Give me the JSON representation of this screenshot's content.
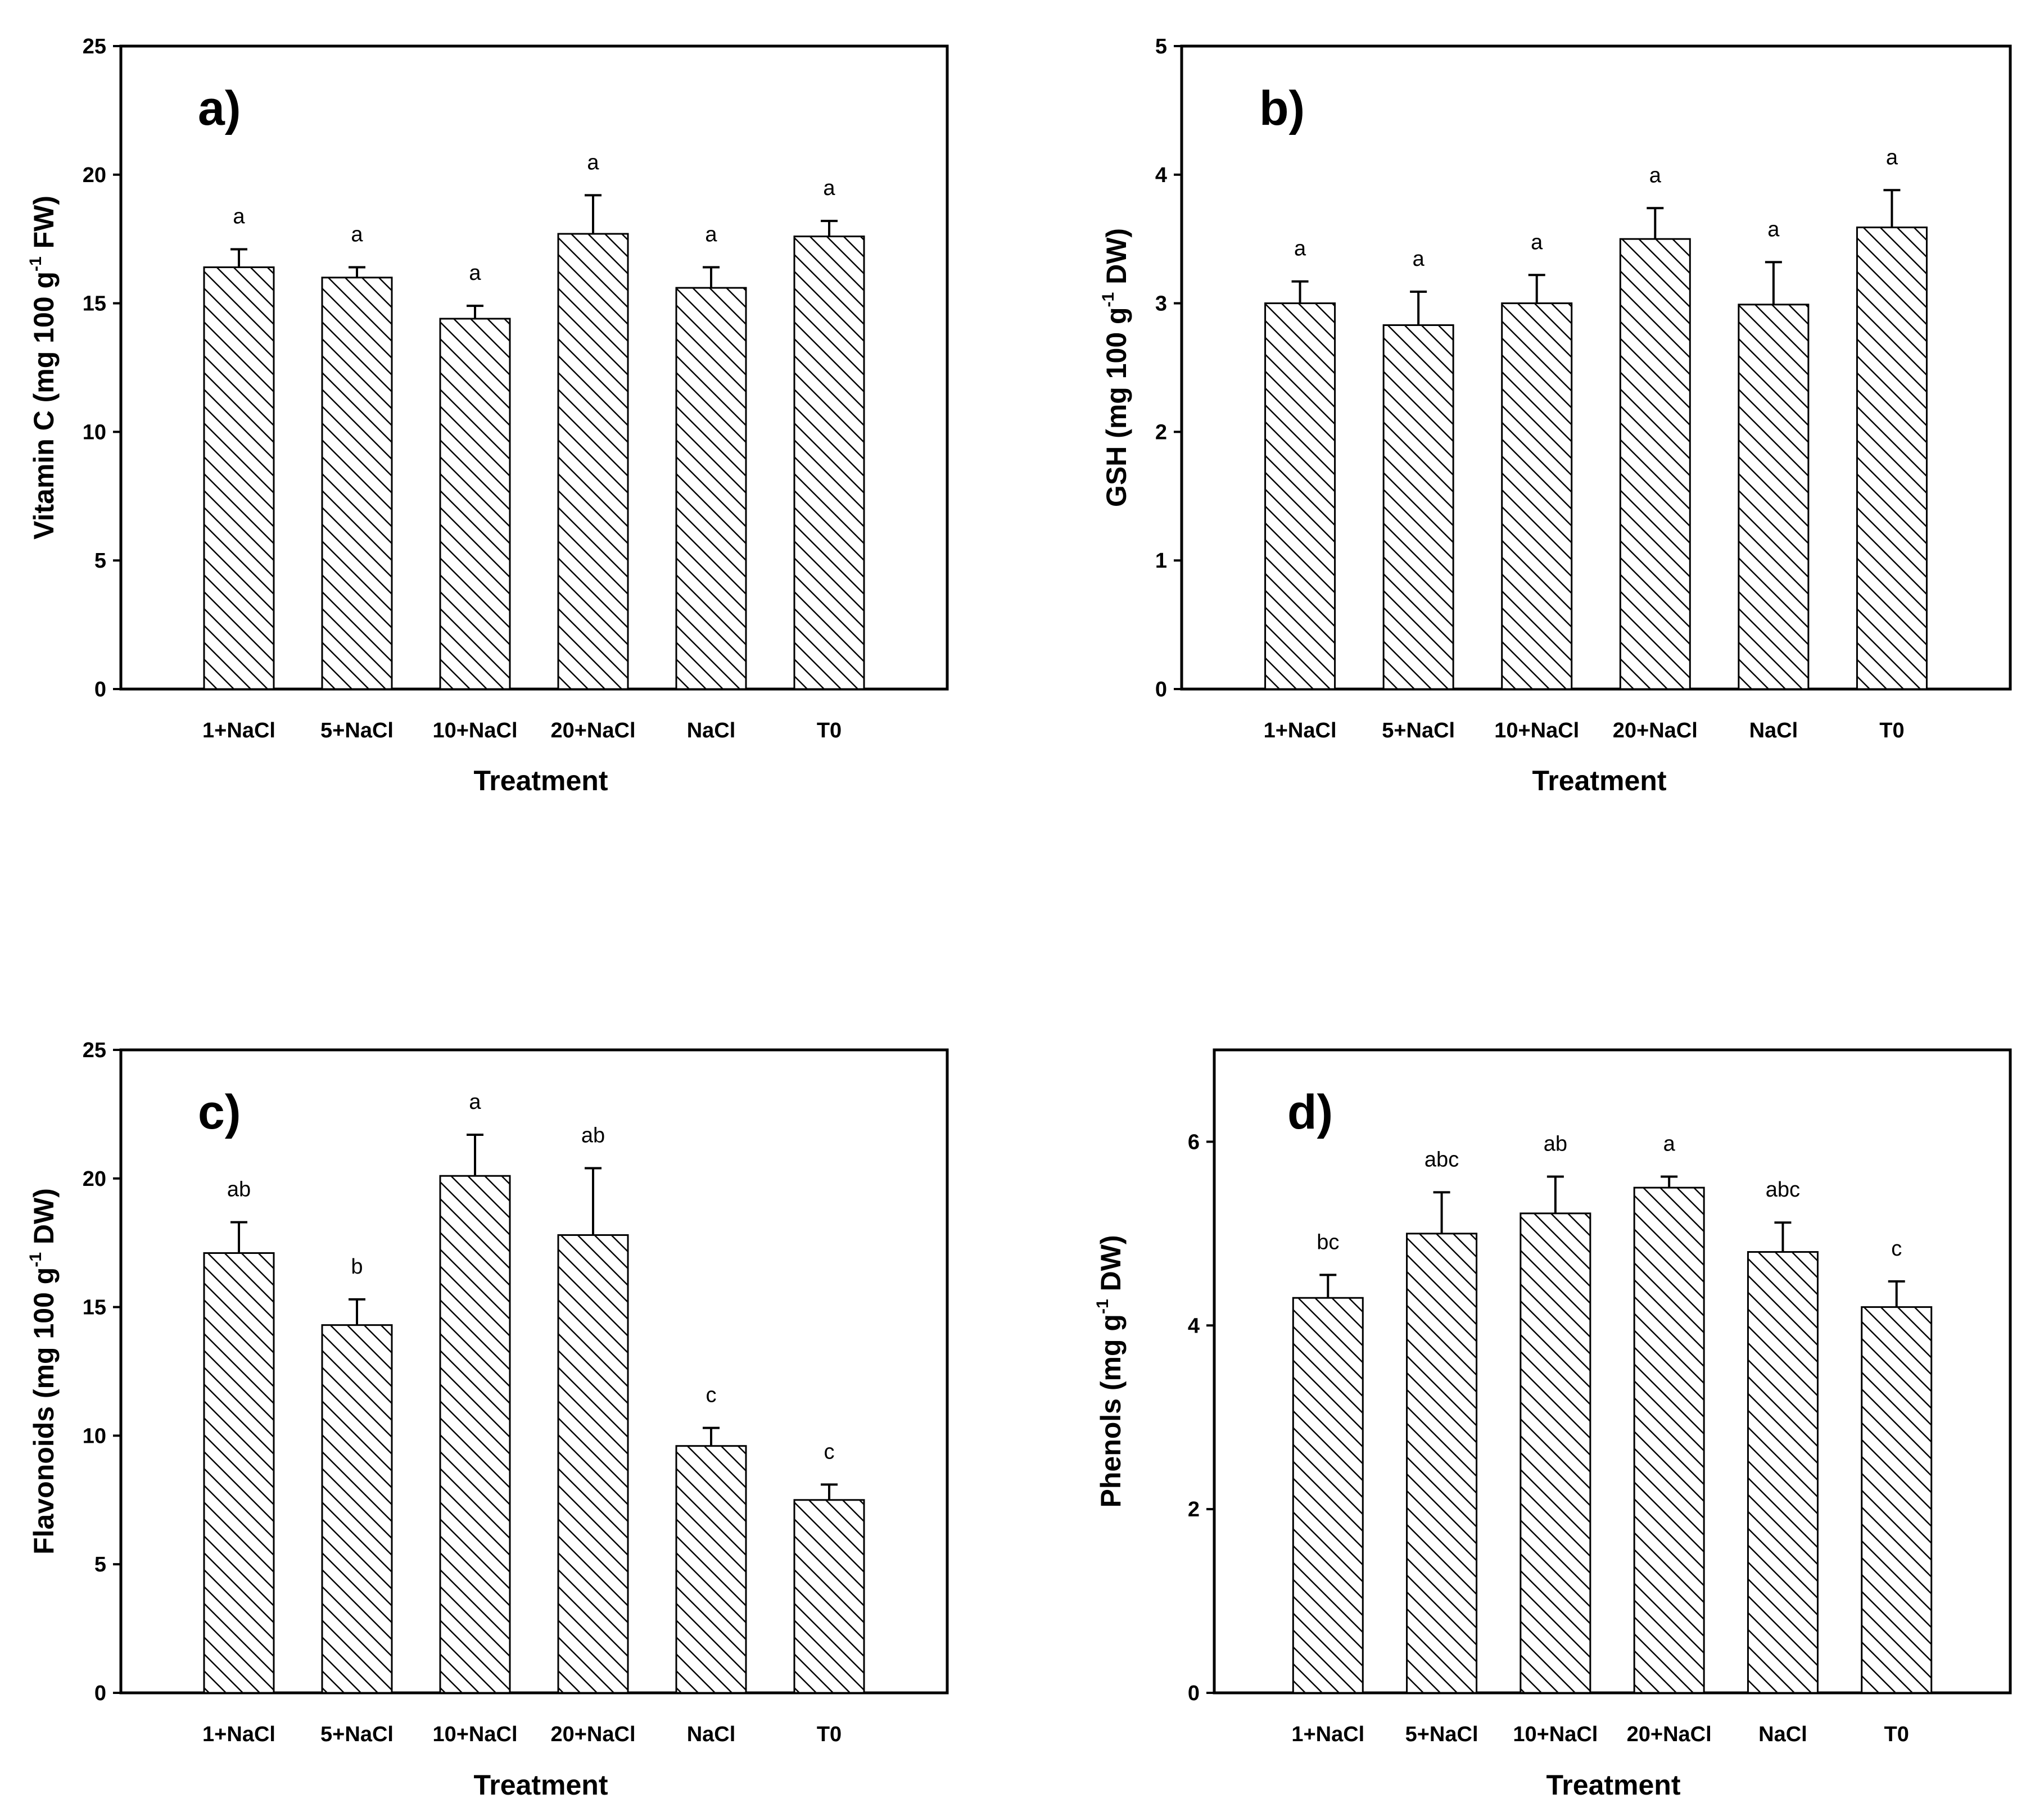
{
  "figure": {
    "x_axis_label": "Treatment",
    "categories": [
      "1+NaCl",
      "5+NaCl",
      "10+NaCl",
      "20+NaCl",
      "NaCl",
      "T0"
    ]
  },
  "chart_data": [
    {
      "type": "bar",
      "panel_label": "a)",
      "xlabel": "Treatment",
      "ylabel": {
        "prefix": "Vitamin C (mg 100 g",
        "sup": "-1",
        "suffix": " FW)"
      },
      "categories": [
        "1+NaCl",
        "5+NaCl",
        "10+NaCl",
        "20+NaCl",
        "NaCl",
        "T0"
      ],
      "values": [
        16.4,
        16.0,
        14.4,
        17.7,
        15.6,
        17.6
      ],
      "errors": [
        0.7,
        0.4,
        0.5,
        1.5,
        0.8,
        0.6
      ],
      "significance": [
        "a",
        "a",
        "a",
        "a",
        "a",
        "a"
      ],
      "ylim": [
        0,
        25
      ],
      "yticks": [
        "0",
        "5",
        "10",
        "15",
        "20",
        "25"
      ]
    },
    {
      "type": "bar",
      "panel_label": "b)",
      "xlabel": "Treatment",
      "ylabel": {
        "prefix": "GSH (mg 100 g",
        "sup": "-1",
        "suffix": " DW)"
      },
      "categories": [
        "1+NaCl",
        "5+NaCl",
        "10+NaCl",
        "20+NaCl",
        "NaCl",
        "T0"
      ],
      "values": [
        3.0,
        2.83,
        3.0,
        3.5,
        2.99,
        3.59
      ],
      "errors": [
        0.17,
        0.26,
        0.22,
        0.24,
        0.33,
        0.29
      ],
      "significance": [
        "a",
        "a",
        "a",
        "a",
        "a",
        "a"
      ],
      "ylim": [
        0,
        5
      ],
      "yticks": [
        "0",
        "1",
        "2",
        "3",
        "4",
        "5"
      ]
    },
    {
      "type": "bar",
      "panel_label": "c)",
      "xlabel": "Treatment",
      "ylabel": {
        "prefix": "Flavonoids (mg 100 g",
        "sup": "-1",
        "suffix": " DW)"
      },
      "categories": [
        "1+NaCl",
        "5+NaCl",
        "10+NaCl",
        "20+NaCl",
        "NaCl",
        "T0"
      ],
      "values": [
        17.1,
        14.3,
        20.1,
        17.8,
        9.6,
        7.5
      ],
      "errors": [
        1.2,
        1.0,
        1.6,
        2.6,
        0.7,
        0.6
      ],
      "significance": [
        "ab",
        "b",
        "a",
        "ab",
        "c",
        "c"
      ],
      "ylim": [
        0,
        25
      ],
      "yticks": [
        "0",
        "5",
        "10",
        "15",
        "20",
        "25"
      ]
    },
    {
      "type": "bar",
      "panel_label": "d)",
      "xlabel": "Treatment",
      "ylabel": {
        "prefix": "Phenols (mg g",
        "sup": "-1",
        "suffix": " DW)"
      },
      "categories": [
        "1+NaCl",
        "5+NaCl",
        "10+NaCl",
        "20+NaCl",
        "NaCl",
        "T0"
      ],
      "values": [
        4.3,
        5.0,
        5.22,
        5.5,
        4.8,
        4.2
      ],
      "errors": [
        0.25,
        0.45,
        0.4,
        0.12,
        0.32,
        0.28
      ],
      "significance": [
        "bc",
        "abc",
        "ab",
        "a",
        "abc",
        "c"
      ],
      "ylim": [
        0,
        7
      ],
      "yticks": [
        "0",
        "2",
        "4",
        "6"
      ]
    }
  ]
}
